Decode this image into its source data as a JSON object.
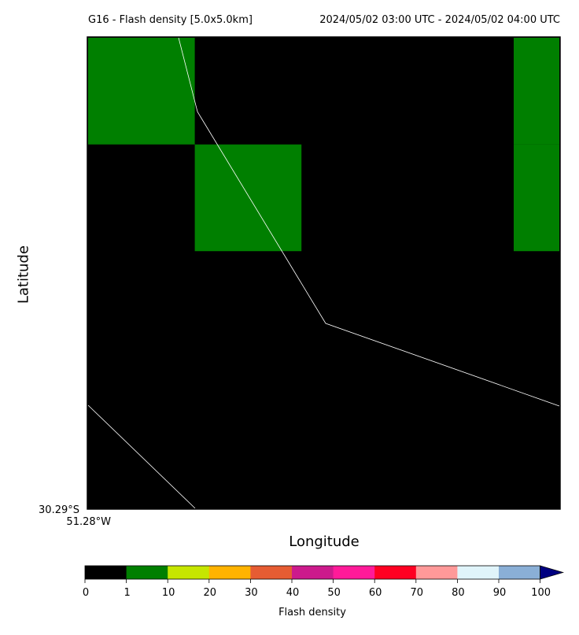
{
  "header": {
    "title_left": "G16 - Flash density [5.0x5.0km]",
    "title_right": "2024/05/02 03:00 UTC - 2024/05/02 04:00 UTC"
  },
  "map": {
    "background_color": "#000000",
    "grid_cells": [
      {
        "row": 0,
        "col": 0,
        "value_range": "1-10"
      },
      {
        "row": 1,
        "col": 1,
        "value_range": "1-10"
      },
      {
        "row": 0,
        "col": 4,
        "value_range": "1-10"
      },
      {
        "row": 1,
        "col": 4,
        "value_range": "1-10"
      }
    ],
    "corner_lat": "30.29°S",
    "corner_lon": "51.28°W",
    "xlabel": "Longitude",
    "ylabel": "Latitude"
  },
  "colorbar": {
    "label": "Flash density",
    "ticks": [
      "0",
      "1",
      "10",
      "20",
      "30",
      "40",
      "50",
      "60",
      "70",
      "80",
      "90",
      "100"
    ],
    "colors": [
      "#000000",
      "#007f00",
      "#c6e600",
      "#ffb300",
      "#e65c33",
      "#cc1a8c",
      "#ff1a99",
      "#ff0022",
      "#ff9999",
      "#e0f4fa",
      "#8aafd6"
    ],
    "extend_color": "#000080"
  }
}
